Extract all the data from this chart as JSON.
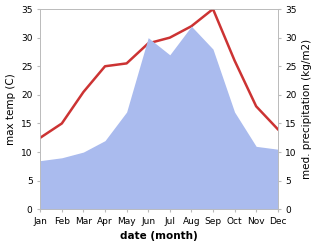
{
  "months": [
    "Jan",
    "Feb",
    "Mar",
    "Apr",
    "May",
    "Jun",
    "Jul",
    "Aug",
    "Sep",
    "Oct",
    "Nov",
    "Dec"
  ],
  "temperature": [
    12.5,
    15.0,
    20.5,
    25.0,
    25.5,
    29.0,
    30.0,
    32.0,
    35.0,
    26.0,
    18.0,
    14.0
  ],
  "precipitation": [
    8.5,
    9.0,
    10.0,
    12.0,
    17.0,
    30.0,
    27.0,
    32.0,
    28.0,
    17.0,
    11.0,
    10.5
  ],
  "temp_color": "#cc3333",
  "precip_color": "#aabbee",
  "background_color": "#ffffff",
  "ylim_left": [
    0,
    35
  ],
  "ylim_right": [
    0,
    35
  ],
  "ylabel_left": "max temp (C)",
  "ylabel_right": "med. precipitation (kg/m2)",
  "xlabel": "date (month)",
  "temp_linewidth": 1.8,
  "label_fontsize": 7.5,
  "tick_fontsize": 6.5
}
